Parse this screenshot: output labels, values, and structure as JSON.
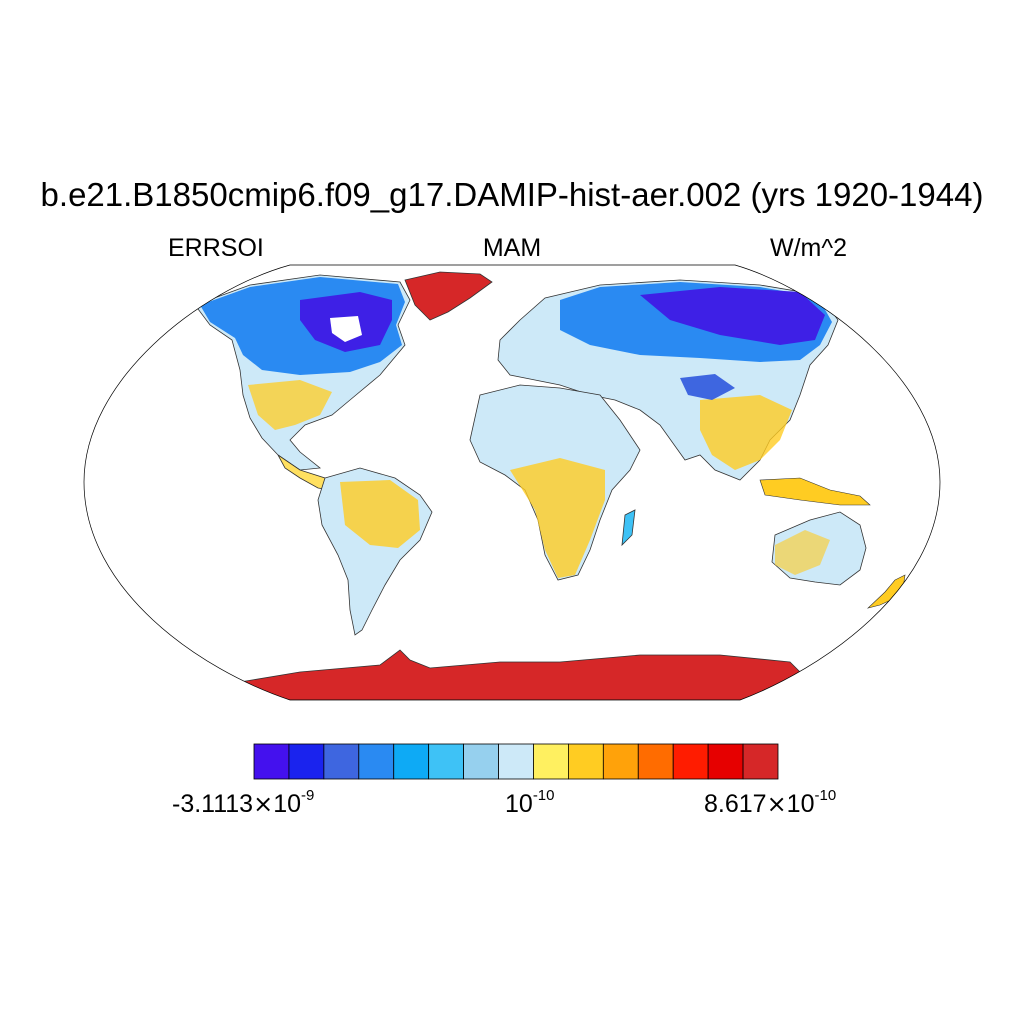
{
  "title": "b.e21.B1850cmip6.f09_g17.DAMIP-hist-aer.002 (yrs 1920-1944)",
  "subtitle": {
    "left": "ERRSOI",
    "center": "MAM",
    "right": "W/m^2"
  },
  "colorbar": {
    "colors": [
      "#4411ee",
      "#1a23ee",
      "#3e66e0",
      "#2a8af2",
      "#0eaaf5",
      "#3ec2f6",
      "#96d0ee",
      "#cde9f8",
      "#fff060",
      "#ffcc22",
      "#ffa20a",
      "#ff6c00",
      "#ff1c00",
      "#e60000",
      "#d62728"
    ],
    "labels": {
      "min": {
        "mantissa": "-3.1113",
        "times": "×",
        "base": "10",
        "exp": "-9"
      },
      "mid": {
        "base": "10",
        "exp": "-10"
      },
      "max": {
        "mantissa": "8.617",
        "times": "×",
        "base": "10",
        "exp": "-10"
      }
    }
  },
  "chart_data": {
    "type": "heatmap",
    "projection": "robinson",
    "variable": "ERRSOI",
    "season": "MAM",
    "units": "W/m^2",
    "scale_min": -3.1113e-09,
    "scale_max": 8.617e-10,
    "n_levels": 15
  }
}
